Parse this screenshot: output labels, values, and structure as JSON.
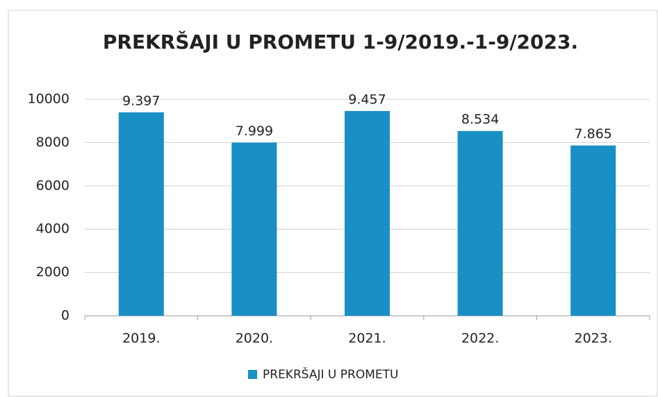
{
  "chart_data": {
    "type": "bar",
    "title": "PREKRŠAJI U PROMETU 1-9/2019.-1-9/2023.",
    "categories": [
      "2019.",
      "2020.",
      "2021.",
      "2022.",
      "2023."
    ],
    "series": [
      {
        "name": "PREKRŠAJI U PROMETU",
        "color": "#1a8fc6",
        "values": [
          9397,
          7999,
          9457,
          8534,
          7865
        ],
        "value_labels": [
          "9.397",
          "7.999",
          "9.457",
          "8.534",
          "7.865"
        ]
      }
    ],
    "ylim": [
      0,
      10000
    ],
    "yticks": [
      0,
      2000,
      4000,
      6000,
      8000,
      10000
    ],
    "grid": true,
    "legend": "bottom"
  }
}
